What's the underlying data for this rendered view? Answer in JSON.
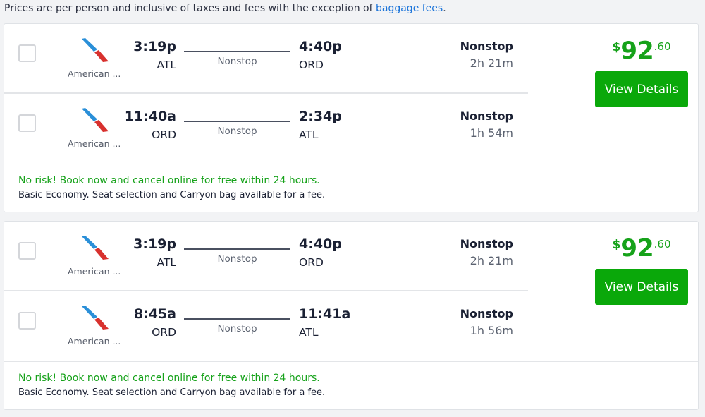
{
  "notice": {
    "text": "Prices are per person and inclusive of taxes and fees with the exception of ",
    "link": "baggage fees",
    "end": "."
  },
  "colors": {
    "accent": "#0aa80a",
    "link": "#1a73d9"
  },
  "results": [
    {
      "price": {
        "symbol": "$",
        "dollars": "92",
        "cents": ".60"
      },
      "button": "View Details",
      "legs": [
        {
          "airline": "American ...",
          "logo": "american-airlines-logo-icon",
          "dep_time": "3:19p",
          "dep_code": "ATL",
          "arr_time": "4:40p",
          "arr_code": "ORD",
          "stops_mid": "Nonstop",
          "stops": "Nonstop",
          "duration": "2h 21m"
        },
        {
          "airline": "American ...",
          "logo": "american-airlines-logo-icon",
          "dep_time": "11:40a",
          "dep_code": "ORD",
          "arr_time": "2:34p",
          "arr_code": "ATL",
          "stops_mid": "Nonstop",
          "stops": "Nonstop",
          "duration": "1h 54m"
        }
      ],
      "risk": "No risk! Book now and cancel online for free within 24 hours.",
      "fare_note": "Basic Economy. Seat selection and Carryon bag available for a fee."
    },
    {
      "price": {
        "symbol": "$",
        "dollars": "92",
        "cents": ".60"
      },
      "button": "View Details",
      "legs": [
        {
          "airline": "American ...",
          "logo": "american-airlines-logo-icon",
          "dep_time": "3:19p",
          "dep_code": "ATL",
          "arr_time": "4:40p",
          "arr_code": "ORD",
          "stops_mid": "Nonstop",
          "stops": "Nonstop",
          "duration": "2h 21m"
        },
        {
          "airline": "American ...",
          "logo": "american-airlines-logo-icon",
          "dep_time": "8:45a",
          "dep_code": "ORD",
          "arr_time": "11:41a",
          "arr_code": "ATL",
          "stops_mid": "Nonstop",
          "stops": "Nonstop",
          "duration": "1h 56m"
        }
      ],
      "risk": "No risk! Book now and cancel online for free within 24 hours.",
      "fare_note": "Basic Economy. Seat selection and Carryon bag available for a fee."
    }
  ]
}
